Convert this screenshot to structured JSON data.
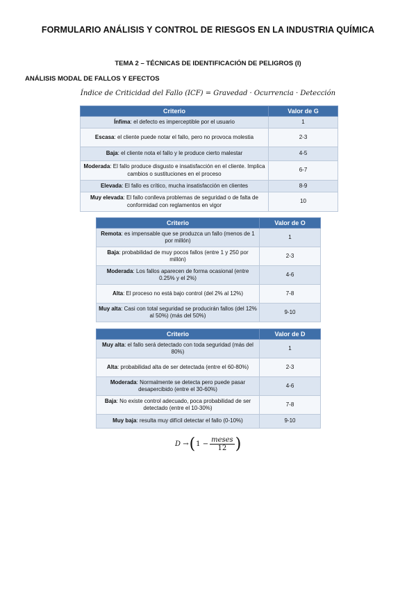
{
  "doc": {
    "title": "FORMULARIO ANÁLISIS Y CONTROL DE RIESGOS EN LA INDUSTRIA QUÍMICA",
    "topic": "TEMA 2 – TÉCNICAS DE IDENTIFICACIÓN DE PELIGROS (I)",
    "section": "ANÁLISIS MODAL DE FALLOS Y EFECTOS",
    "icf_formula": "Índice de Criticidad del Fallo (ICF) = Gravedad · Ocurrencia · Detección"
  },
  "gravedad": {
    "header_criterio": "Criterio",
    "header_valor": "Valor de G",
    "rows": [
      {
        "key": "Ínfima",
        "text": ": el defecto es imperceptible por el usuario",
        "value": "1"
      },
      {
        "key": "Escasa",
        "text": ": el cliente puede notar el fallo, pero no provoca molestia",
        "value": "2-3"
      },
      {
        "key": "Baja",
        "text": ": el cliente nota el fallo y le produce cierto malestar",
        "value": "4-5"
      },
      {
        "key": "Moderada",
        "text": ": El fallo produce disgusto e insatisfacción en el cliente. Implica cambios o sustituciones en el proceso",
        "value": "6-7"
      },
      {
        "key": "Elevada",
        "text": ": El fallo es crítico, mucha insatisfacción en clientes",
        "value": "8-9"
      },
      {
        "key": "Muy elevada",
        "text": ": El fallo conlleva problemas de seguridad o de falta de conformidad con reglamentos en vigor",
        "value": "10"
      }
    ]
  },
  "ocurrencia": {
    "header_criterio": "Criterio",
    "header_valor": "Valor de O",
    "rows": [
      {
        "key": "Remota",
        "text": ": es impensable que se produzca un fallo (menos de 1 por millón)",
        "value": "1"
      },
      {
        "key": "Baja",
        "text": ": probabilidad de muy pocos fallos (entre 1 y 250 por millón)",
        "value": "2-3"
      },
      {
        "key": "Moderada",
        "text": ": Los fallos aparecen de forma ocasional (entre 0.25% y el 2%)",
        "value": "4-6"
      },
      {
        "key": "Alta",
        "text": ": El proceso no está bajo control (del 2% al 12%)",
        "value": "7-8"
      },
      {
        "key": "Muy alta",
        "text": ": Casi con total seguridad se producirán fallos (del 12% al 50%) (más del 50%)",
        "value": "9-10"
      }
    ]
  },
  "deteccion": {
    "header_criterio": "Criterio",
    "header_valor": "Valor de D",
    "rows": [
      {
        "key": "Muy alta",
        "text": ": el fallo será detectado con toda seguridad (más del 80%)",
        "value": "1"
      },
      {
        "key": "Alta",
        "text": ": probabilidad alta de ser detectada (entre el 60-80%)",
        "value": "2-3"
      },
      {
        "key": "Moderada",
        "text": ": Normalmente se detecta pero puede pasar desapercibido (entre el 30-60%)",
        "value": "4-6"
      },
      {
        "key": "Baja",
        "text": ": No existe control adecuado, poca probabilidad de ser detectado (entre el 10-30%)",
        "value": "7-8"
      },
      {
        "key": "Muy baja",
        "text": ": resulta muy difícil detectar el fallo (0-10%)",
        "value": "9-10"
      }
    ]
  },
  "d_formula": {
    "lhs": "D →",
    "open": "(",
    "one_minus": "1 −",
    "numerator": "meses",
    "denominator": "12",
    "close": ")"
  }
}
